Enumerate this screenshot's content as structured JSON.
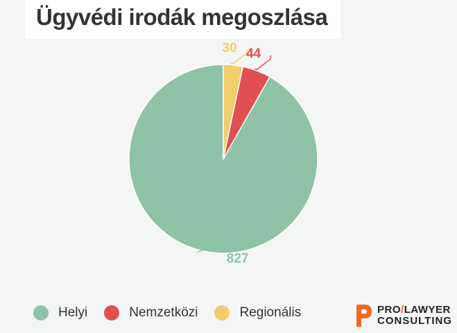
{
  "title": "Ügyvédi irodák megoszlása",
  "chart_data": {
    "type": "pie",
    "title": "Ügyvédi irodák megoszlása",
    "slices": [
      {
        "label": "Helyi",
        "value": 827,
        "color": "#8ec3a7"
      },
      {
        "label": "Nemzetközi",
        "value": 44,
        "color": "#e05050"
      },
      {
        "label": "Regionális",
        "value": 30,
        "color": "#f1ce6b"
      }
    ],
    "start_angle_deg": 0,
    "direction": "counterclockwise",
    "legend_position": "bottom-left"
  },
  "legend": [
    {
      "label": "Helyi",
      "color": "#8ec3a7"
    },
    {
      "label": "Nemzetközi",
      "color": "#e05050"
    },
    {
      "label": "Regionális",
      "color": "#f1ce6b"
    }
  ],
  "logo": {
    "brand_pre": "PRO",
    "brand_slash": "/",
    "brand_post": "LAWYER",
    "brand_line2": "CONSULTING",
    "accent_color": "#f26a21"
  }
}
